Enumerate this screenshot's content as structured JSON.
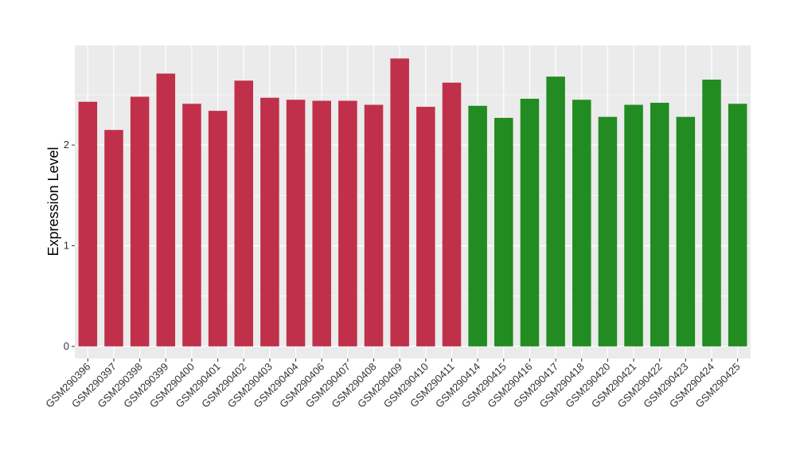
{
  "chart_data": {
    "type": "bar",
    "title": "",
    "xlabel": "",
    "ylabel": "Expression Level",
    "ylim": [
      -0.12,
      2.99
    ],
    "yticks": [
      0,
      1,
      2
    ],
    "grid": true,
    "legend": "none",
    "colors": {
      "group_a": "#c0304a",
      "group_b": "#228b22",
      "panel": "#ebebeb",
      "grid": "#ffffff"
    },
    "categories": [
      "GSM290396",
      "GSM290397",
      "GSM290398",
      "GSM290399",
      "GSM290400",
      "GSM290401",
      "GSM290402",
      "GSM290403",
      "GSM290404",
      "GSM290406",
      "GSM290407",
      "GSM290408",
      "GSM290409",
      "GSM290410",
      "GSM290411",
      "GSM290414",
      "GSM290415",
      "GSM290416",
      "GSM290417",
      "GSM290418",
      "GSM290420",
      "GSM290421",
      "GSM290422",
      "GSM290423",
      "GSM290424",
      "GSM290425"
    ],
    "values": [
      2.43,
      2.15,
      2.48,
      2.71,
      2.41,
      2.34,
      2.64,
      2.47,
      2.45,
      2.44,
      2.44,
      2.4,
      2.86,
      2.38,
      2.62,
      2.39,
      2.27,
      2.46,
      2.68,
      2.45,
      2.28,
      2.4,
      2.42,
      2.28,
      2.65,
      2.41
    ],
    "groups": [
      "a",
      "a",
      "a",
      "a",
      "a",
      "a",
      "a",
      "a",
      "a",
      "a",
      "a",
      "a",
      "a",
      "a",
      "a",
      "b",
      "b",
      "b",
      "b",
      "b",
      "b",
      "b",
      "b",
      "b",
      "b",
      "b"
    ]
  }
}
